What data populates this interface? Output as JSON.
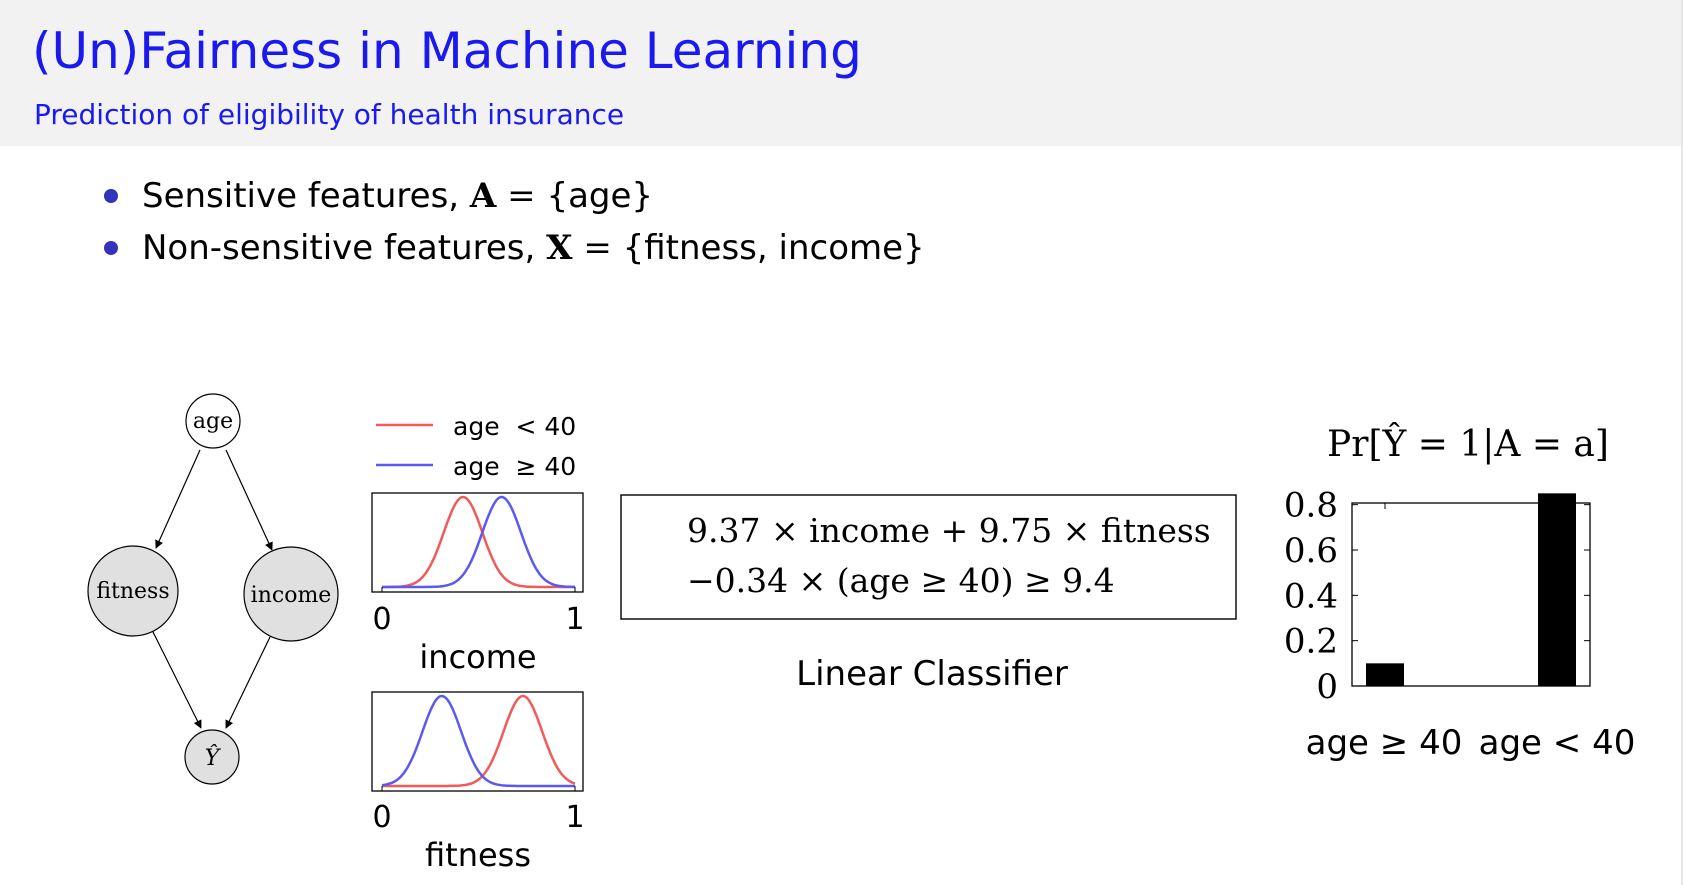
{
  "slide": {
    "title": "(Un)Fairness in Machine Learning",
    "subtitle": "Prediction of eligibility of health insurance"
  },
  "bullets": [
    {
      "label": "Sensitive features,",
      "var": "A",
      "eq": "=",
      "set": "{age}"
    },
    {
      "label": "Non-sensitive features,",
      "var": "X",
      "eq": "=",
      "set": "{fitness, income}"
    }
  ],
  "graph": {
    "nodes": {
      "age": "age",
      "fitness": "fitness",
      "income": "income",
      "yhat": "Ŷ"
    }
  },
  "legend": {
    "young": {
      "label": "age  < 40",
      "color": "#f25a5a"
    },
    "old": {
      "label": "age  ≥ 40",
      "color": "#5a5af2"
    }
  },
  "distributions": {
    "income": {
      "xlabel": "income",
      "tick_min": "0",
      "tick_max": "1",
      "young_mean": 0.42,
      "old_mean": 0.62,
      "sigma": 0.1
    },
    "fitness": {
      "xlabel": "fitness",
      "tick_min": "0",
      "tick_max": "1",
      "young_mean": 0.73,
      "old_mean": 0.31,
      "sigma": 0.1
    }
  },
  "classifier": {
    "line1": "9.37 × income + 9.75 × fitness",
    "line2": "−0.34 × (age ≥ 40) ≥ 9.4",
    "caption": "Linear Classifier"
  },
  "chart_data": {
    "type": "bar",
    "title": "Pr[Ŷ = 1|A = a]",
    "categories": [
      "age ≥ 40",
      "age < 40"
    ],
    "values": [
      0.1,
      0.85
    ],
    "yticks": [
      "0",
      "0.2",
      "0.4",
      "0.6",
      "0.8"
    ],
    "ylim": [
      0,
      0.9
    ]
  }
}
